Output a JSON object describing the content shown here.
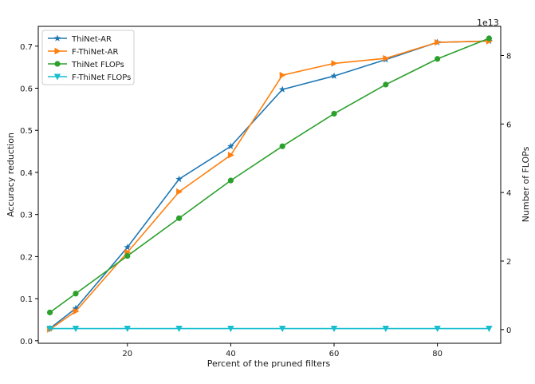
{
  "chart_data": {
    "type": "line",
    "title": "",
    "xlabel": "Percent of the pruned filters",
    "ylabel": "Accuracy reduction",
    "y2label": "Number of FLOPs",
    "y2_offset_label": "1e13",
    "xlim": [
      2.75,
      92.25
    ],
    "ylim": [
      -0.006,
      0.747
    ],
    "y2lim": [
      -0.4,
      8.85
    ],
    "x_ticks": [
      20,
      40,
      60,
      80
    ],
    "x_tick_labels": [
      "20",
      "40",
      "60",
      "80"
    ],
    "y_ticks": [
      0.0,
      0.1,
      0.2,
      0.3,
      0.4,
      0.5,
      0.6,
      0.7
    ],
    "y_tick_labels": [
      "0.0",
      "0.1",
      "0.2",
      "0.3",
      "0.4",
      "0.5",
      "0.6",
      "0.7"
    ],
    "y2_ticks": [
      0,
      2,
      4,
      6,
      8
    ],
    "y2_tick_labels": [
      "0",
      "2",
      "4",
      "6",
      "8"
    ],
    "x": [
      5,
      10,
      20,
      30,
      40,
      50,
      60,
      70,
      80,
      90
    ],
    "legend_position": "top-left",
    "series": [
      {
        "name": "ThiNet-AR",
        "axis": "left",
        "color": "#1f77b4",
        "marker": "star",
        "values": [
          0.029,
          0.077,
          0.222,
          0.384,
          0.462,
          0.597,
          0.629,
          0.668,
          0.709,
          0.712
        ]
      },
      {
        "name": "F-ThiNet-AR",
        "axis": "left",
        "color": "#ff7f0e",
        "marker": "triangle-right",
        "values": [
          0.027,
          0.07,
          0.21,
          0.354,
          0.441,
          0.631,
          0.659,
          0.671,
          0.709,
          0.712
        ]
      },
      {
        "name": "ThiNet FLOPs",
        "axis": "right",
        "color": "#2ca02c",
        "marker": "circle",
        "values": [
          0.5,
          1.05,
          2.15,
          3.25,
          4.35,
          5.35,
          6.3,
          7.15,
          7.9,
          8.5
        ]
      },
      {
        "name": "F-ThiNet FLOPs",
        "axis": "right",
        "color": "#17becf",
        "marker": "triangle-down",
        "values": [
          0.03,
          0.03,
          0.03,
          0.03,
          0.03,
          0.03,
          0.03,
          0.03,
          0.03,
          0.03
        ]
      }
    ]
  }
}
